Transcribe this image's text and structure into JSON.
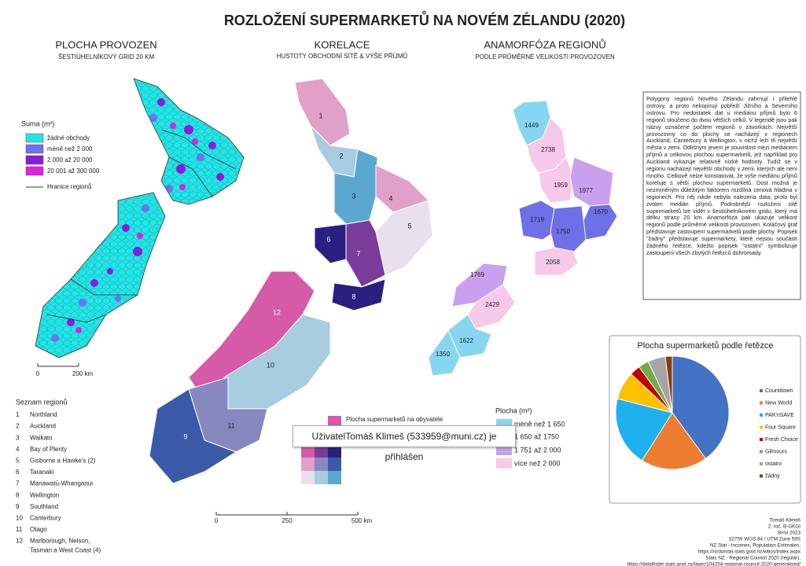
{
  "title": "ROZLOŽENÍ SUPERMARKETŮ NA NOVÉM ZÉLANDU (2020)",
  "map1": {
    "title": "PLOCHA PROVOZEN",
    "subtitle": "ŠESTIÚHELNÍKOVÝ GRID 20 KM",
    "legend_title": "Suma (m²)",
    "legend": [
      "žádné obchody",
      "méně než 2 000",
      "2 000 až 20 000",
      "20 001 až 300 000",
      "Hranice regionů"
    ],
    "scale": [
      "0",
      "200 km"
    ]
  },
  "region_list": {
    "title": "Seznam regionů",
    "items": [
      {
        "num": "1",
        "name": "Northland"
      },
      {
        "num": "2",
        "name": "Auckland"
      },
      {
        "num": "3",
        "name": "Waikato"
      },
      {
        "num": "4",
        "name": "Bay of Plenty"
      },
      {
        "num": "5",
        "name": "Gisborne a Hawke's (2)"
      },
      {
        "num": "6",
        "name": "Taranaki"
      },
      {
        "num": "7",
        "name": "Manawatū-Whanganui"
      },
      {
        "num": "8",
        "name": "Wellington"
      },
      {
        "num": "9",
        "name": "Southland"
      },
      {
        "num": "10",
        "name": "Canterbury"
      },
      {
        "num": "11",
        "name": "Otago"
      },
      {
        "num": "12",
        "name": "Marlborough, Nelson,",
        "name2": "Tasman a West Coast (4)"
      }
    ]
  },
  "map2": {
    "title": "KORELACE",
    "subtitle": "HUSTOTY OBCHODNÍ SÍTĚ & VÝŠE PŘÍJMŮ",
    "labels": [
      "1",
      "2",
      "3",
      "4",
      "5",
      "6",
      "7",
      "8",
      "9",
      "10",
      "11",
      "12"
    ],
    "legend_title": "Plocha supermarketů na obyvatele",
    "scale": [
      "0",
      "250",
      "500 km"
    ]
  },
  "map3": {
    "title": "ANAMORFÓZA REGIONŮ",
    "subtitle": "PODLE PRŮMĚRNÉ VELIKOSTI PROVOZOVEN",
    "labels": [
      1449,
      2738,
      1959,
      1977,
      1670,
      1719,
      1750,
      2058,
      1769,
      2429,
      1622,
      1350
    ],
    "legend_title": "Plocha (m²)",
    "legend": [
      "méně než 1 650",
      "1 650 až 1750",
      "1 751 až 2 000",
      "více než 2 000"
    ]
  },
  "note": "Polygony regionů Nového Zélandu zahrnují i přilehlé ostrovy, a proto nekopírují pobřeží Jižního a Severního ostrovu. Pro nedostatek dat u mediánu příjmů bylo 6 regionů sloučeno do dvou větších celků. V legendě jsou pak názvy označené počtem regionů v závorkách. Největší provozovny co do plochy se nacházejí v regionech Auckland, Canterbury a Wellington, v nichž leží tři největší města v zemi. Odlišným jevem je souvislost mezi mediánem příjmů a celkovou plochou supermarketů, jež například pro Auckland vykazuje relativně nízké hodnoty. Tudíž se v regionu nacházejí největší obchody v zemi, kterých ale není mnoho. Celkově nelze konstatovat, že výše mediánu příjmů koreluje s větší plochou supermarketů. Dost možná je nezmíněným důležitým faktorem rozdílná cenová hladina v regionech. Pro něj nikde nebyla nalezena data, proto byl zvolen medián příjmů. Podrobnější rozložení sítě supermarketů lze vidět v šestiúhelníkovém gridu, který má délku strany 20 km. Anamorfóza pak ukazuje velikost regionů podle průměrné velikosti provozoven. Koláčový graf představuje zastoupení supermarketů podle plochy. Popisek \"žádný\" představuje supermarkety, které nejsou součástí žádného řetězce, kdežto popisek \"ostatní\" symbolizuje zastoupení všech zbylých řetězců dohromady.",
  "chart_data": {
    "type": "pie",
    "title": "Plocha supermarketů podle řetězce",
    "categories": [
      "Countdown",
      "New World",
      "PAK'nSAVE",
      "Four Square",
      "Fresh Choice",
      "Gilmours",
      "ostatní",
      "žádný"
    ],
    "values": [
      40,
      19,
      20,
      8,
      3,
      3,
      5,
      2
    ],
    "colors": [
      "#4472c4",
      "#ed7d31",
      "#1fb0f0",
      "#ffc000",
      "#c00000",
      "#70ad47",
      "#a5a5a5",
      "#843c0c"
    ],
    "legend": "right"
  },
  "credits": [
    "Tomáš Klimeš",
    "2. roč. B-GKGI",
    "Brno 2023",
    "32759 WGS 84 / UTM Zone 59S",
    "NZ.Stat - Incomes, Population Estimates,",
    "https://nzdotstat.stats.govt.nz/wbos/Index.aspx",
    "Stats NZ - Regional Council 2020 (regular),",
    "https://datafinder.stats.govt.nz/layer/104254-regional-council-2020-generalised/"
  ],
  "tooltip": "UživatelTomáš Klimeš (533959@muni.cz) je přihlášen"
}
